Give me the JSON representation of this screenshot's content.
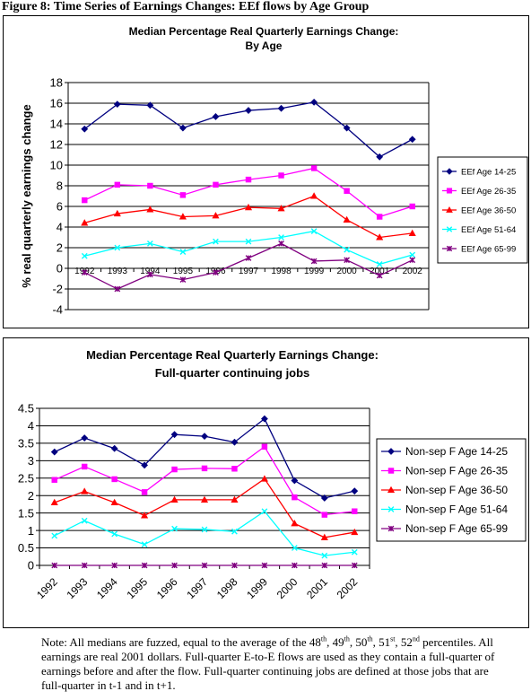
{
  "figure_title": "Figure 8: Time Series of Earnings Changes: EEf flows by Age Group",
  "note": {
    "p1": "Note: All medians are fuzzed, equal to the average of the 48",
    "s1": "th",
    "p2": ", 49",
    "s2": "th",
    "p3": ", 50",
    "s3": "th",
    "p4": ", 51",
    "s4": "st",
    "p5": ", 52",
    "s5": "nd",
    "p6": " percentiles.  All earnings are real 2001 dollars.  Full-quarter E-to-E flows are used as they contain a full-quarter of earnings before and after the flow.  Full-quarter continuing jobs are defined at those jobs that are full-quarter in t-1 and in t+1."
  },
  "chart_data": [
    {
      "type": "line",
      "title_lines": [
        "Median Percentage Real Quarterly Earnings Change:",
        "By Age"
      ],
      "ylabel": "% real quarterly earnings change",
      "xlabel": "",
      "categories": [
        "1992",
        "1993",
        "1994",
        "1995",
        "1996",
        "1997",
        "1998",
        "1999",
        "2000",
        "2001",
        "2002"
      ],
      "ylim": [
        -4,
        18
      ],
      "yticks": [
        -4,
        -2,
        0,
        2,
        4,
        6,
        8,
        10,
        12,
        14,
        16,
        18
      ],
      "grid": "horizontal",
      "legend": "right",
      "series": [
        {
          "name": "EEf Age 14-25",
          "color": "#000080",
          "marker": "diamond",
          "values": [
            13.5,
            15.9,
            15.8,
            13.6,
            14.7,
            15.3,
            15.5,
            16.1,
            13.6,
            10.8,
            12.5
          ]
        },
        {
          "name": "EEf Age 26-35",
          "color": "#FF00FF",
          "marker": "square",
          "values": [
            6.6,
            8.1,
            8.0,
            7.1,
            8.1,
            8.6,
            9.0,
            9.7,
            7.5,
            5.0,
            6.0
          ]
        },
        {
          "name": "EEf Age 36-50",
          "color": "#FF0000",
          "marker": "triangle",
          "values": [
            4.4,
            5.3,
            5.7,
            5.0,
            5.1,
            5.9,
            5.8,
            7.0,
            4.7,
            3.0,
            3.4
          ]
        },
        {
          "name": "EEf Age 51-64",
          "color": "#00FFFF",
          "marker": "x",
          "values": [
            1.2,
            2.0,
            2.4,
            1.6,
            2.6,
            2.6,
            3.0,
            3.6,
            1.8,
            0.4,
            1.3
          ]
        },
        {
          "name": "EEf Age 65-99",
          "color": "#800080",
          "marker": "star",
          "values": [
            -0.4,
            -2.0,
            -0.6,
            -1.1,
            -0.4,
            1.0,
            2.4,
            0.7,
            0.8,
            -0.7,
            0.8
          ]
        }
      ]
    },
    {
      "type": "line",
      "title_lines": [
        "Median Percentage Real Quarterly Earnings Change:",
        "Full-quarter continuing jobs"
      ],
      "ylabel": "",
      "xlabel": "",
      "categories": [
        "1992",
        "1993",
        "1994",
        "1995",
        "1996",
        "1997",
        "1998",
        "1999",
        "2000",
        "2001",
        "2002"
      ],
      "ylim": [
        0,
        4.5
      ],
      "yticks": [
        0,
        0.5,
        1,
        1.5,
        2,
        2.5,
        3,
        3.5,
        4,
        4.5
      ],
      "grid": "horizontal",
      "legend": "right",
      "series": [
        {
          "name": "Non-sep F Age 14-25",
          "color": "#000080",
          "marker": "diamond",
          "values": [
            3.25,
            3.65,
            3.35,
            2.87,
            3.75,
            3.7,
            3.53,
            4.2,
            2.43,
            1.93,
            2.13
          ]
        },
        {
          "name": "Non-sep F Age 26-35",
          "color": "#FF00FF",
          "marker": "square",
          "values": [
            2.45,
            2.83,
            2.47,
            2.1,
            2.75,
            2.78,
            2.77,
            3.4,
            1.95,
            1.45,
            1.55
          ]
        },
        {
          "name": "Non-sep F Age 36-50",
          "color": "#FF0000",
          "marker": "triangle",
          "values": [
            1.8,
            2.12,
            1.8,
            1.43,
            1.88,
            1.88,
            1.88,
            2.48,
            1.2,
            0.8,
            0.95
          ]
        },
        {
          "name": "Non-sep F Age 51-64",
          "color": "#00FFFF",
          "marker": "x",
          "values": [
            0.85,
            1.28,
            0.9,
            0.6,
            1.05,
            1.03,
            0.97,
            1.55,
            0.5,
            0.28,
            0.38
          ]
        },
        {
          "name": "Non-sep F Age 65-99",
          "color": "#800080",
          "marker": "star",
          "values": [
            0,
            0,
            0,
            0,
            0,
            0,
            0,
            0,
            0,
            0,
            0
          ]
        }
      ]
    }
  ]
}
